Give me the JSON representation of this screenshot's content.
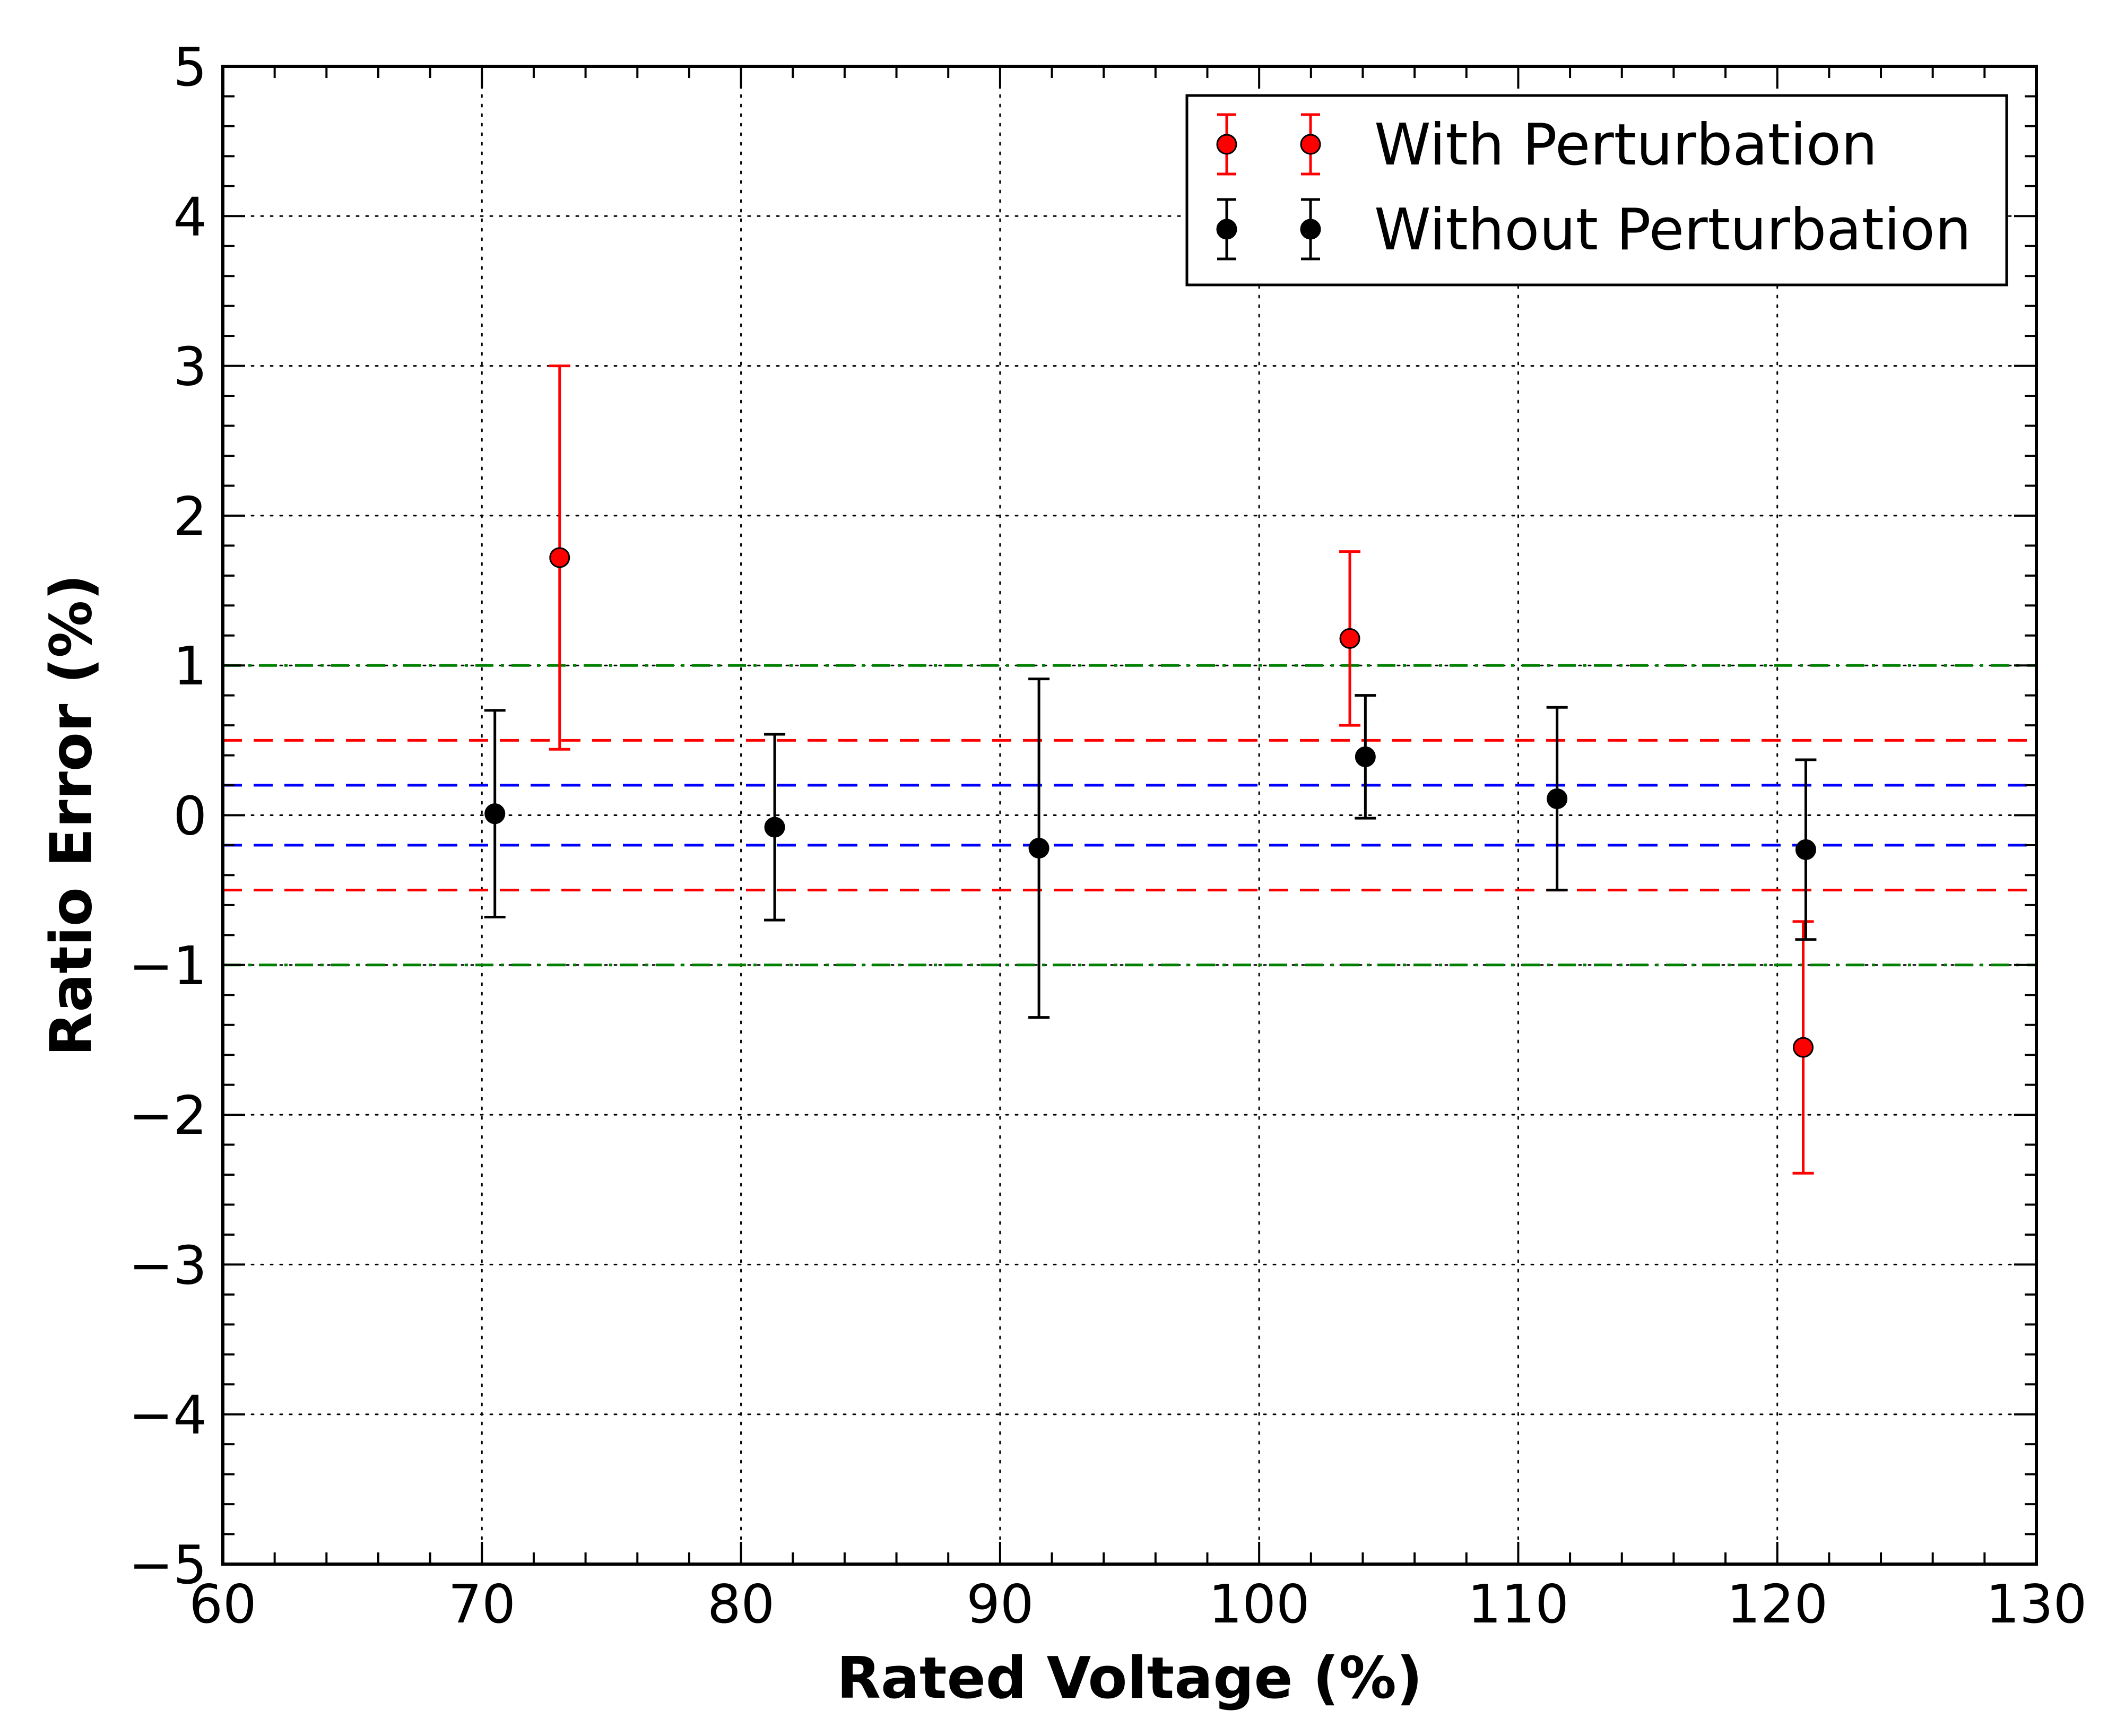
{
  "chart_data": {
    "type": "scatter",
    "title": "",
    "xlabel": "Rated Voltage (%)",
    "ylabel": "Ratio Error (%)",
    "xlim": [
      60,
      130
    ],
    "ylim": [
      -5,
      5
    ],
    "x_ticks": [
      60,
      70,
      80,
      90,
      100,
      110,
      120,
      130
    ],
    "y_ticks": [
      -5,
      -4,
      -3,
      -2,
      -1,
      0,
      1,
      2,
      3,
      4,
      5
    ],
    "x_tick_labels": [
      "60",
      "70",
      "80",
      "90",
      "100",
      "110",
      "120",
      "130"
    ],
    "y_tick_labels": [
      "−5",
      "−4",
      "−3",
      "−2",
      "−1",
      "0",
      "1",
      "2",
      "3",
      "4",
      "5"
    ],
    "grid": true,
    "legend_position": "top-right",
    "series": [
      {
        "name": "With Perturbation",
        "color": "#ff0000",
        "x": [
          73,
          103.5,
          121
        ],
        "y": [
          1.72,
          1.18,
          -1.55
        ],
        "yerr": [
          1.28,
          0.58,
          0.84
        ]
      },
      {
        "name": "Without Perturbation",
        "color": "#000000",
        "x": [
          70.5,
          81.3,
          91.5,
          104.1,
          111.5,
          121.1
        ],
        "y": [
          0.01,
          -0.08,
          -0.22,
          0.39,
          0.11,
          -0.23
        ],
        "yerr": [
          0.69,
          0.62,
          1.13,
          0.41,
          0.61,
          0.6
        ]
      }
    ],
    "reference_lines": [
      {
        "y": 1.0,
        "color": "#008000",
        "style": "dashdot"
      },
      {
        "y": -1.0,
        "color": "#008000",
        "style": "dashdot"
      },
      {
        "y": 0.5,
        "color": "#ff0000",
        "style": "dashed"
      },
      {
        "y": -0.5,
        "color": "#ff0000",
        "style": "dashed"
      },
      {
        "y": 0.2,
        "color": "#0000ff",
        "style": "dashed"
      },
      {
        "y": -0.2,
        "color": "#0000ff",
        "style": "dashed"
      }
    ]
  }
}
